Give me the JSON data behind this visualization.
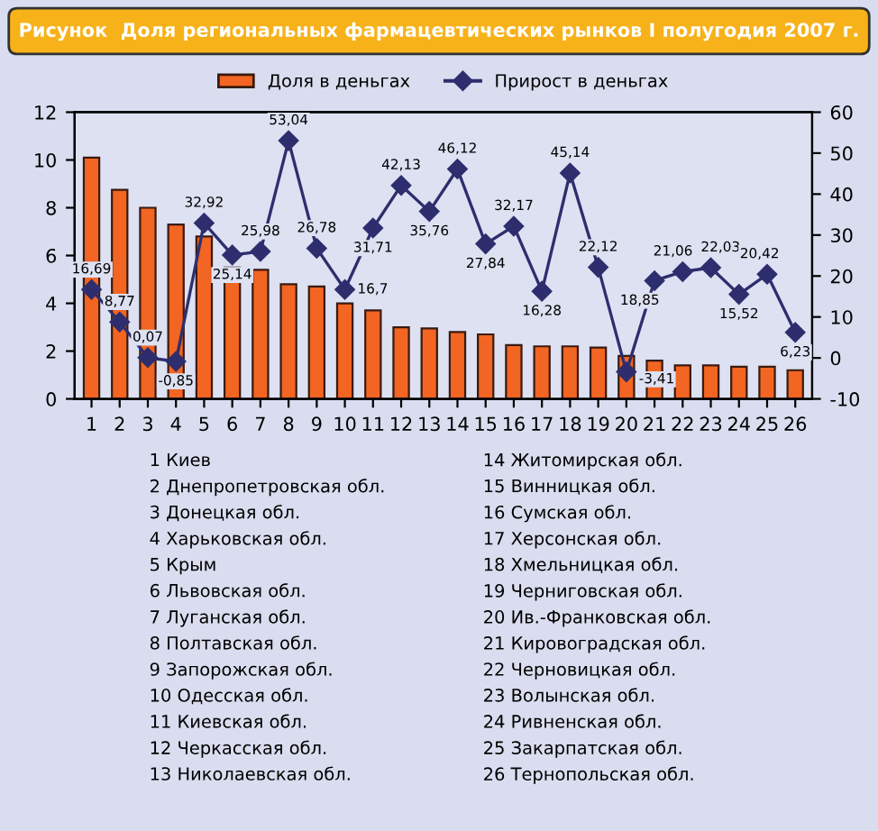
{
  "chart_data": {
    "type": "bar",
    "title": "Рисунок  Доля региональных фармацевтических рынков I полугодия 2007 г.",
    "categories": [
      "1",
      "2",
      "3",
      "4",
      "5",
      "6",
      "7",
      "8",
      "9",
      "10",
      "11",
      "12",
      "13",
      "14",
      "15",
      "16",
      "17",
      "18",
      "19",
      "20",
      "21",
      "22",
      "23",
      "24",
      "25",
      "26"
    ],
    "series": [
      {
        "name": "Доля в деньгах",
        "color": "#f26522",
        "values": [
          10.1,
          8.75,
          8.0,
          7.3,
          6.8,
          5.5,
          5.4,
          4.8,
          4.7,
          4.0,
          3.7,
          3.0,
          2.95,
          2.8,
          2.7,
          2.25,
          2.2,
          2.2,
          2.15,
          1.8,
          1.6,
          1.4,
          1.4,
          1.35,
          1.35,
          1.2
        ]
      },
      {
        "name": "Прирост в деньгах",
        "type": "line",
        "axis": "y2",
        "color": "#2e2e6e",
        "marker": "diamond",
        "values": [
          16.69,
          8.77,
          0.07,
          -0.85,
          32.92,
          25.14,
          25.98,
          53.04,
          26.78,
          16.7,
          31.71,
          42.13,
          35.76,
          46.12,
          27.84,
          32.17,
          16.28,
          45.14,
          22.12,
          -3.41,
          18.85,
          21.06,
          22.03,
          15.52,
          20.42,
          6.23
        ],
        "value_labels": [
          "16,69",
          "8,77",
          "0,07",
          "-0,85",
          "32,92",
          "25,14",
          "25,98",
          "53,04",
          "26,78",
          "16,7",
          "31,71",
          "42,13",
          "35,76",
          "46,12",
          "27,84",
          "32,17",
          "16,28",
          "45,14",
          "22,12",
          "-3,41",
          "18,85",
          "21,06",
          "22,03",
          "15,52",
          "20,42",
          "6,23"
        ]
      }
    ],
    "ylim": [
      0,
      12
    ],
    "yticks": [
      0,
      2,
      4,
      6,
      8,
      10,
      12
    ],
    "y2lim": [
      -10,
      60
    ],
    "y2ticks": [
      -10,
      0,
      10,
      20,
      30,
      40,
      50,
      60
    ],
    "legend": "top",
    "grid": false,
    "annotations": [
      "1 Киев",
      "2 Днепропетровская обл.",
      "3 Донецкая обл.",
      "4 Харьковская обл.",
      "5 Крым",
      "6 Львовская обл.",
      "7 Луганская обл.",
      "8 Полтавская обл.",
      "9 Запорожская обл.",
      "10 Одесская обл.",
      "11 Киевская обл.",
      "12 Черкасская обл.",
      "13 Николаевская обл.",
      "14 Житомирская обл.",
      "15 Винницкая обл.",
      "16 Сумская обл.",
      "17 Херсонская обл.",
      "18 Хмельницкая обл.",
      "19 Черниговская обл.",
      "20 Ив.-Франковская обл.",
      "21 Кировоградская обл.",
      "22 Черновицкая обл.",
      "23 Волынская обл.",
      "24 Ривненская обл.",
      "25 Закарпатская обл.",
      "26 Тернопольская обл."
    ]
  }
}
